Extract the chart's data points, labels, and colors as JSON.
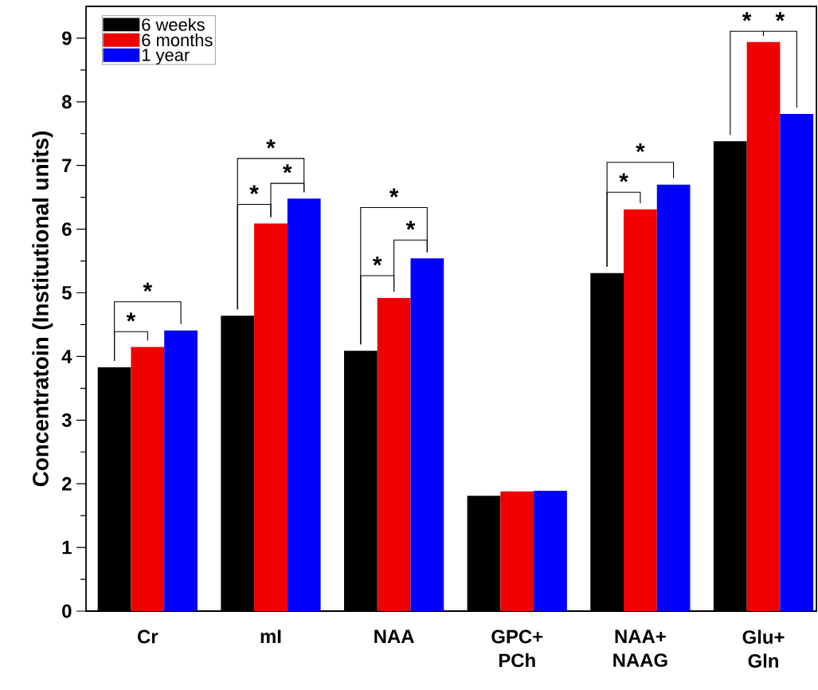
{
  "chart_data": {
    "type": "bar",
    "ylabel": "Concentratoin (Institutional units)",
    "categories": [
      "Cr",
      "mI",
      "NAA",
      "GPC+ PCh",
      "NAA+ NAAG",
      "Glu+ Gln"
    ],
    "series": [
      {
        "name": "6 weeks",
        "color": "#000000",
        "values": [
          3.83,
          4.64,
          4.09,
          1.81,
          5.31,
          7.38
        ]
      },
      {
        "name": "6 months",
        "color": "#f00000",
        "values": [
          4.15,
          6.09,
          4.92,
          1.88,
          6.31,
          8.94
        ]
      },
      {
        "name": "1 year",
        "color": "#0000ff",
        "values": [
          4.41,
          6.48,
          5.54,
          1.89,
          6.7,
          7.81
        ]
      }
    ],
    "ylim": [
      0,
      9.5
    ],
    "yticks": [
      0,
      1,
      2,
      3,
      4,
      5,
      6,
      7,
      8,
      9
    ],
    "legend": "top left",
    "annotations": [
      "*",
      "*",
      "*",
      "*",
      "*",
      "*",
      "*",
      "*",
      "*",
      "*",
      "*",
      "*"
    ]
  }
}
